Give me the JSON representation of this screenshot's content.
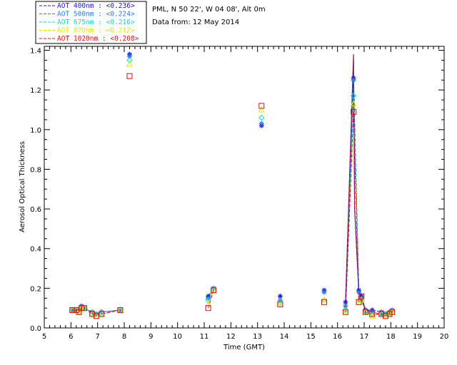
{
  "legend": {
    "items": [
      {
        "label": "AOT  400nm : <0.236>",
        "color": "#1b1bd6"
      },
      {
        "label": "AOT  500nm : <0.224>",
        "color": "#2a7ae8"
      },
      {
        "label": "AOT  675nm : <0.216>",
        "color": "#00e6c8"
      },
      {
        "label": "AOT  870nm : <0.212>",
        "color": "#e8e800"
      },
      {
        "label": "AOT 1020nm : <0.208>",
        "color": "#e01010"
      }
    ]
  },
  "info": {
    "site": "PML, N 50 22', W 04 08', Alt 0m",
    "date": "Data from: 12 May 2014"
  },
  "chart_data": {
    "type": "scatter",
    "title": "PML, N 50 22', W 04 08', Alt 0m",
    "subtitle": "Data from: 12 May 2014",
    "xlabel": "Time (GMT)",
    "ylabel": "Aerosol Optical Thickness",
    "xlim": [
      5,
      20
    ],
    "ylim": [
      0,
      1.42
    ],
    "xticks": [
      5,
      6,
      7,
      8,
      9,
      10,
      11,
      12,
      13,
      14,
      15,
      16,
      17,
      18,
      19,
      20
    ],
    "yticks": [
      0.0,
      0.2,
      0.4,
      0.6,
      0.8,
      1.0,
      1.2,
      1.4
    ],
    "x": [
      6.05,
      6.2,
      6.3,
      6.4,
      6.5,
      6.8,
      6.95,
      7.15,
      7.85,
      8.2,
      11.15,
      11.35,
      13.15,
      13.85,
      15.5,
      16.3,
      16.6,
      16.8,
      16.9,
      17.05,
      17.3,
      17.65,
      17.8,
      17.95,
      18.05
    ],
    "series": [
      {
        "name": "AOT 400nm",
        "marker": "asterisk",
        "values": [
          0.09,
          0.09,
          0.09,
          0.11,
          0.1,
          0.08,
          0.07,
          0.08,
          0.09,
          1.38,
          0.16,
          0.2,
          1.02,
          0.16,
          0.19,
          0.13,
          1.26,
          0.19,
          0.16,
          0.09,
          0.09,
          0.08,
          0.07,
          0.08,
          0.09
        ]
      },
      {
        "name": "AOT 500nm",
        "marker": "asterisk",
        "values": [
          0.09,
          0.09,
          0.09,
          0.1,
          0.1,
          0.08,
          0.07,
          0.08,
          0.09,
          1.37,
          0.15,
          0.2,
          1.03,
          0.14,
          0.18,
          0.11,
          1.25,
          0.18,
          0.15,
          0.08,
          0.08,
          0.07,
          0.07,
          0.08,
          0.09
        ]
      },
      {
        "name": "AOT 675nm",
        "marker": "diamond",
        "values": [
          0.09,
          0.09,
          0.08,
          0.1,
          0.1,
          0.07,
          0.07,
          0.07,
          0.09,
          1.35,
          0.14,
          0.19,
          1.06,
          0.13,
          0.14,
          0.09,
          1.17,
          0.14,
          0.14,
          0.08,
          0.07,
          0.07,
          0.07,
          0.07,
          0.08
        ]
      },
      {
        "name": "AOT 870nm",
        "marker": "triangle",
        "values": [
          0.09,
          0.09,
          0.08,
          0.1,
          0.1,
          0.07,
          0.06,
          0.07,
          0.09,
          1.33,
          0.12,
          0.19,
          1.1,
          0.12,
          0.14,
          0.08,
          1.13,
          0.13,
          0.14,
          0.08,
          0.06,
          0.07,
          0.06,
          0.07,
          0.08
        ]
      },
      {
        "name": "AOT 1020nm",
        "marker": "square",
        "values": [
          0.09,
          0.09,
          0.08,
          0.1,
          0.1,
          0.07,
          0.06,
          0.07,
          0.09,
          1.27,
          0.1,
          0.19,
          1.12,
          0.12,
          0.13,
          0.08,
          1.09,
          0.13,
          0.16,
          0.08,
          0.07,
          0.07,
          0.06,
          0.07,
          0.08
        ]
      }
    ],
    "spike": {
      "x": [
        16.3,
        16.6,
        16.8,
        16.9,
        17.05,
        17.3
      ],
      "top": 1.38
    },
    "grid": false,
    "legend_position": "top-left"
  }
}
